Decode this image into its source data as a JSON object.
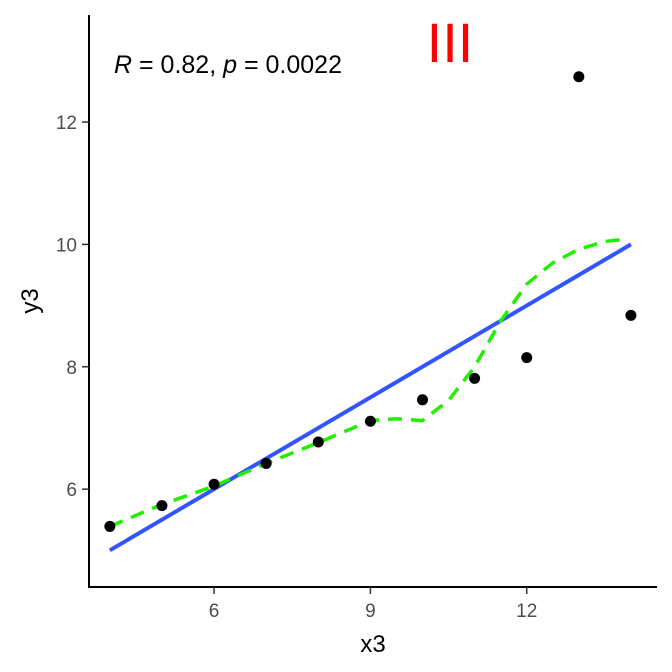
{
  "chart_data": {
    "type": "scatter",
    "title": "",
    "xlabel": "x3",
    "ylabel": "y3",
    "xlim": [
      3.6,
      14.5
    ],
    "ylim": [
      4.4,
      13.75
    ],
    "xticks": [
      6,
      9,
      12
    ],
    "yticks": [
      6,
      8,
      10,
      12
    ],
    "grid": false,
    "points": [
      {
        "x": 4,
        "y": 5.39
      },
      {
        "x": 5,
        "y": 5.73
      },
      {
        "x": 6,
        "y": 6.08
      },
      {
        "x": 7,
        "y": 6.42
      },
      {
        "x": 8,
        "y": 6.77
      },
      {
        "x": 9,
        "y": 7.11
      },
      {
        "x": 10,
        "y": 7.46
      },
      {
        "x": 11,
        "y": 7.81
      },
      {
        "x": 12,
        "y": 8.15
      },
      {
        "x": 13,
        "y": 12.74
      },
      {
        "x": 14,
        "y": 8.84
      }
    ],
    "regression_line": {
      "x": [
        4,
        14
      ],
      "y": [
        5.0,
        10.0
      ],
      "color": "#3355ff"
    },
    "smooth_curve": {
      "color": "#22ee00",
      "x": [
        4,
        5,
        6,
        7,
        8,
        9,
        9.5,
        10,
        10.5,
        11,
        11.5,
        12,
        12.5,
        13,
        13.5,
        13.85
      ],
      "y": [
        5.39,
        5.75,
        6.05,
        6.42,
        6.76,
        7.12,
        7.15,
        7.12,
        7.45,
        8.0,
        8.75,
        9.35,
        9.7,
        9.92,
        10.05,
        10.08
      ]
    },
    "annotation": {
      "r_symbol": "R",
      "r_equals": " = 0.82, ",
      "p_symbol": "p",
      "p_equals": " = 0.0022"
    },
    "panel_label": {
      "text": "III",
      "color": "#ff0000"
    }
  }
}
